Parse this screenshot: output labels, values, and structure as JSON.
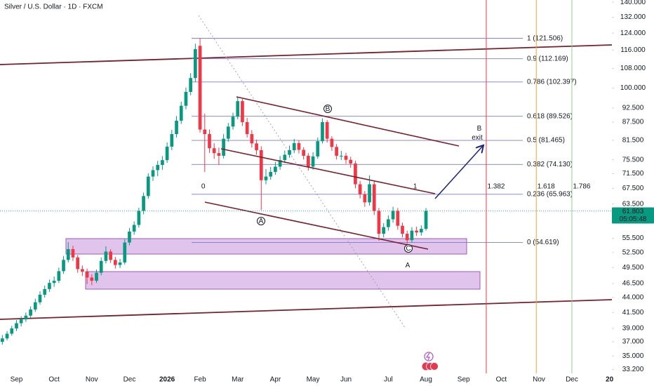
{
  "chart_data": {
    "type": "candlestick",
    "title": "Silver / U.S. Dollar · 1D · FXCM",
    "log_scale": true,
    "grid": false,
    "up_color": "#089981",
    "down_color": "#f23645",
    "ylim": [
      32.7,
      141.2
    ],
    "yticks": [
      {
        "value": 140,
        "label": "140.000"
      },
      {
        "value": 132,
        "label": "132.000"
      },
      {
        "value": 124,
        "label": "124.000"
      },
      {
        "value": 116,
        "label": "116.000"
      },
      {
        "value": 108,
        "label": "108.000"
      },
      {
        "value": 100,
        "label": "100.000"
      },
      {
        "value": 92.5,
        "label": "92.500"
      },
      {
        "value": 87.5,
        "label": "87.500"
      },
      {
        "value": 81.5,
        "label": "81.500"
      },
      {
        "value": 75.5,
        "label": "75.500"
      },
      {
        "value": 71.5,
        "label": "71.500"
      },
      {
        "value": 67.5,
        "label": "67.500"
      },
      {
        "value": 63.5,
        "label": "63.500"
      },
      {
        "value": 55.5,
        "label": "55.500"
      },
      {
        "value": 52.5,
        "label": "52.500"
      },
      {
        "value": 49.5,
        "label": "49.500"
      },
      {
        "value": 46.5,
        "label": "46.500"
      },
      {
        "value": 44,
        "label": "44.000"
      },
      {
        "value": 41.5,
        "label": "41.500"
      },
      {
        "value": 39,
        "label": "39.000"
      },
      {
        "value": 37,
        "label": "37.000"
      },
      {
        "value": 35,
        "label": "35.000"
      },
      {
        "value": 33.2,
        "label": "33.200"
      }
    ],
    "categories": [
      null,
      null,
      null,
      "Sep",
      null,
      null,
      null,
      null,
      null,
      null,
      null,
      "Oct",
      null,
      null,
      null,
      null,
      null,
      null,
      null,
      "Nov",
      null,
      null,
      null,
      null,
      null,
      null,
      null,
      "Dec",
      null,
      null,
      null,
      null,
      null,
      null,
      null,
      "2026",
      null,
      null,
      null,
      null,
      null,
      null,
      "Feb",
      null,
      null,
      null,
      null,
      null,
      null,
      null,
      "Mar",
      null,
      null,
      null,
      null,
      null,
      null,
      null,
      "Apr",
      null,
      null,
      null,
      null,
      null,
      null,
      null,
      "May",
      null,
      null,
      null,
      null,
      null,
      null,
      "Jun",
      null,
      null,
      null,
      null,
      null,
      null,
      null,
      null,
      "Jul",
      null,
      null,
      null,
      null,
      null,
      null,
      null,
      "Aug",
      null,
      null,
      null,
      null,
      null,
      null,
      null,
      "Sep",
      null,
      null,
      null,
      null,
      null,
      null,
      null,
      "Oct",
      null,
      null,
      null,
      null,
      null,
      null,
      null,
      "Nov",
      null,
      null,
      null,
      null,
      null,
      null,
      "Dec",
      null,
      null,
      null,
      null,
      null,
      null,
      null,
      "20"
    ],
    "open": [
      37.0,
      37.5,
      38.2,
      39.0,
      39.8,
      40.4,
      41.0,
      42.0,
      43.2,
      44.5,
      45.5,
      46.6,
      47.0,
      48.8,
      51.0,
      53.2,
      51.5,
      49.2,
      48.7,
      47.6,
      47.0,
      48.5,
      50.8,
      52.7,
      51.0,
      50.0,
      50.5,
      54.6,
      57.0,
      58.5,
      61.8,
      65.5,
      70.7,
      72.5,
      74.0,
      75.4,
      79.5,
      83.5,
      88.0,
      93.3,
      98.5,
      104.0,
      118.0,
      85.0,
      83.5,
      79.0,
      77.5,
      76.7,
      82.0,
      86.0,
      89.4,
      95.0,
      87.5,
      83.5,
      80.5,
      78.4,
      69.7,
      70.7,
      72.0,
      73.5,
      75.4,
      77.0,
      78.4,
      80.6,
      78.5,
      76.7,
      73.5,
      76.5,
      81.2,
      87.5,
      82.0,
      79.4,
      76.7,
      76.7,
      75.5,
      74.4,
      68.6,
      66.0,
      63.9,
      68.6,
      61.8,
      56.5,
      58.0,
      59.8,
      61.8,
      58.3,
      56.5,
      55.1,
      57.2,
      56.8,
      57.6,
      null,
      null,
      null,
      null,
      null,
      null,
      null,
      null,
      null,
      null,
      null,
      null,
      null,
      null,
      null,
      null,
      null,
      null,
      null,
      null,
      null,
      null,
      null,
      null,
      null,
      null,
      null,
      null,
      null,
      null,
      null,
      null,
      null,
      null,
      null,
      null,
      null,
      null,
      null
    ],
    "high": [
      38.0,
      38.6,
      39.4,
      40.3,
      40.9,
      41.5,
      42.5,
      43.8,
      45.1,
      46.1,
      47.2,
      47.8,
      49.5,
      51.8,
      54.7,
      53.9,
      52.0,
      49.9,
      49.3,
      48.2,
      49.1,
      51.5,
      53.8,
      53.2,
      51.6,
      51.2,
      55.3,
      57.8,
      59.3,
      62.6,
      66.4,
      71.6,
      73.6,
      75.2,
      76.6,
      80.8,
      84.9,
      89.6,
      94.8,
      100.2,
      106.0,
      119.0,
      121.5,
      90.5,
      85.0,
      80.6,
      79.2,
      83.5,
      87.2,
      90.8,
      96.5,
      95.8,
      89.0,
      84.8,
      81.7,
      79.6,
      72.8,
      73.4,
      74.9,
      76.6,
      78.3,
      79.8,
      81.9,
      81.4,
      79.3,
      77.5,
      77.8,
      82.4,
      88.8,
      88.2,
      82.8,
      80.3,
      78.2,
      77.6,
      76.4,
      75.2,
      69.5,
      66.8,
      71.0,
      69.4,
      62.5,
      58.9,
      60.7,
      62.8,
      62.5,
      59.0,
      57.2,
      58.0,
      58.1,
      58.4,
      62.5,
      null,
      null,
      null,
      null,
      null,
      null,
      null,
      null,
      null,
      null,
      null,
      null,
      null,
      null,
      null,
      null,
      null,
      null,
      null,
      null,
      null,
      null,
      null,
      null,
      null,
      null,
      null,
      null,
      null,
      null,
      null,
      null,
      null,
      null,
      null,
      null,
      null,
      null,
      null
    ],
    "low": [
      36.6,
      37.2,
      37.9,
      38.6,
      39.3,
      40.0,
      40.6,
      41.6,
      42.8,
      44.0,
      45.0,
      45.9,
      46.6,
      48.3,
      50.5,
      50.8,
      48.5,
      47.9,
      46.4,
      46.2,
      46.6,
      48.0,
      50.3,
      50.4,
      49.3,
      49.4,
      50.1,
      54.0,
      56.3,
      57.9,
      61.0,
      64.8,
      69.5,
      70.8,
      72.6,
      74.6,
      78.4,
      82.4,
      86.9,
      92.0,
      97.2,
      102.5,
      84.0,
      72.0,
      77.6,
      75.8,
      74.0,
      75.9,
      81.0,
      85.0,
      88.5,
      86.2,
      82.4,
      79.2,
      77.0,
      62.0,
      68.6,
      69.8,
      71.2,
      72.6,
      74.5,
      76.1,
      77.5,
      77.4,
      75.6,
      72.4,
      72.6,
      75.8,
      80.5,
      80.8,
      78.2,
      75.6,
      75.4,
      74.3,
      73.2,
      67.5,
      64.9,
      62.8,
      63.1,
      60.8,
      55.0,
      55.7,
      57.2,
      59.0,
      57.4,
      55.7,
      54.3,
      54.6,
      56.0,
      56.1,
      57.2,
      null,
      null,
      null,
      null,
      null,
      null,
      null,
      null,
      null,
      null,
      null,
      null,
      null,
      null,
      null,
      null,
      null,
      null,
      null,
      null,
      null,
      null,
      null,
      null,
      null,
      null,
      null,
      null,
      null,
      null,
      null,
      null,
      null,
      null,
      null,
      null,
      null,
      null,
      null
    ],
    "close": [
      37.5,
      38.2,
      39.0,
      39.8,
      40.4,
      41.0,
      42.0,
      43.2,
      44.5,
      45.5,
      46.6,
      47.0,
      48.8,
      51.0,
      53.2,
      51.5,
      49.2,
      48.7,
      47.6,
      47.0,
      48.5,
      50.8,
      52.7,
      51.0,
      50.0,
      50.5,
      54.6,
      57.0,
      58.5,
      61.8,
      65.5,
      70.7,
      72.5,
      74.0,
      75.4,
      79.5,
      83.5,
      88.0,
      93.3,
      98.5,
      104.0,
      116.5,
      85.0,
      83.5,
      79.0,
      77.5,
      76.7,
      82.0,
      86.0,
      89.4,
      95.0,
      87.5,
      83.5,
      80.5,
      78.4,
      69.7,
      70.7,
      72.0,
      73.5,
      75.4,
      77.0,
      78.4,
      80.6,
      78.5,
      76.7,
      73.5,
      76.5,
      81.2,
      87.5,
      82.0,
      79.4,
      76.7,
      76.7,
      75.5,
      74.4,
      68.6,
      66.0,
      63.9,
      68.6,
      61.8,
      56.5,
      58.0,
      59.8,
      61.8,
      58.3,
      56.5,
      55.1,
      57.2,
      56.8,
      57.6,
      61.803,
      null,
      null,
      null,
      null,
      null,
      null,
      null,
      null,
      null,
      null,
      null,
      null,
      null,
      null,
      null,
      null,
      null,
      null,
      null,
      null,
      null,
      null,
      null,
      null,
      null,
      null,
      null,
      null,
      null,
      null,
      null,
      null,
      null,
      null,
      null,
      null,
      null,
      null,
      null
    ],
    "countdown": "05:05:48",
    "fib_levels": [
      {
        "value": 121.506,
        "label": "1 (121.506)",
        "color": "#55557a"
      },
      {
        "value": 112.169,
        "label": "0.9 (112.169)",
        "color": "#5b8fd6"
      },
      {
        "value": 102.397,
        "label": "0.786 (102.397)",
        "color": "#9c4a4a"
      },
      {
        "value": 89.526,
        "label": "0.618 (89.526)",
        "color": "#55557a"
      },
      {
        "value": 81.465,
        "label": "0.5 (81.465)",
        "color": "#2d3a7a"
      },
      {
        "value": 74.13,
        "label": "0.382 (74.130)",
        "color": "#2d3a7a"
      },
      {
        "value": 65.963,
        "label": "0.236 (65.963)",
        "color": "#333344"
      },
      {
        "value": 54.619,
        "label": "0 (54.619)",
        "color": "#2d3a7a"
      }
    ],
    "fib_time_levels": [
      {
        "value": 0,
        "color": "#a6a8b8",
        "line": false
      },
      {
        "value": 1,
        "color": "#a6a8b8",
        "line": false
      },
      {
        "value": 1.382,
        "color": "#f23645",
        "line": true
      },
      {
        "value": 1.618,
        "color": "#f5a13a",
        "line": true
      },
      {
        "value": 1.786,
        "color": "#93cf93",
        "line": true
      }
    ],
    "wave_labels": [
      "A",
      "B",
      "C",
      "A",
      "B",
      "exit"
    ]
  }
}
